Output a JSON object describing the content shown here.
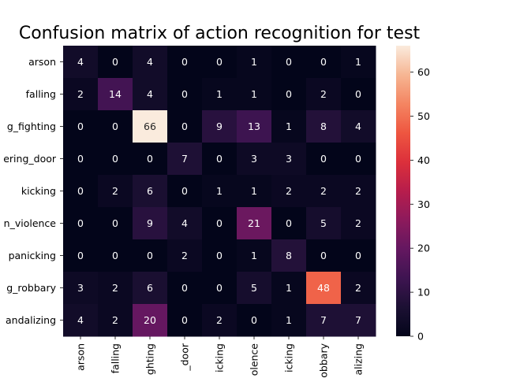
{
  "chart_data": {
    "type": "heatmap",
    "title": "Confusion matrix of action recognition for test",
    "row_labels": [
      "arson",
      "falling",
      "g_fighting",
      "ering_door",
      "kicking",
      "n_violence",
      "panicking",
      "g_robbary",
      "andalizing"
    ],
    "col_labels": [
      "arson",
      "falling",
      "ghting",
      "_door",
      "icking",
      "olence",
      "icking",
      "obbary",
      "alizing"
    ],
    "values": [
      [
        4,
        0,
        4,
        0,
        0,
        1,
        0,
        0,
        1
      ],
      [
        2,
        14,
        4,
        0,
        1,
        1,
        0,
        2,
        0
      ],
      [
        0,
        0,
        66,
        0,
        9,
        13,
        1,
        8,
        4
      ],
      [
        0,
        0,
        0,
        7,
        0,
        3,
        3,
        0,
        0
      ],
      [
        0,
        2,
        6,
        0,
        1,
        1,
        2,
        2,
        2
      ],
      [
        0,
        0,
        9,
        4,
        0,
        21,
        0,
        5,
        2
      ],
      [
        0,
        0,
        0,
        2,
        0,
        1,
        8,
        0,
        0
      ],
      [
        3,
        2,
        6,
        0,
        0,
        5,
        1,
        48,
        2
      ],
      [
        4,
        2,
        20,
        0,
        2,
        0,
        1,
        7,
        7
      ]
    ],
    "vmin": 0,
    "vmax": 66,
    "colormap": "rocket",
    "colorbar_ticks": [
      0,
      10,
      20,
      30,
      40,
      50,
      60
    ]
  }
}
